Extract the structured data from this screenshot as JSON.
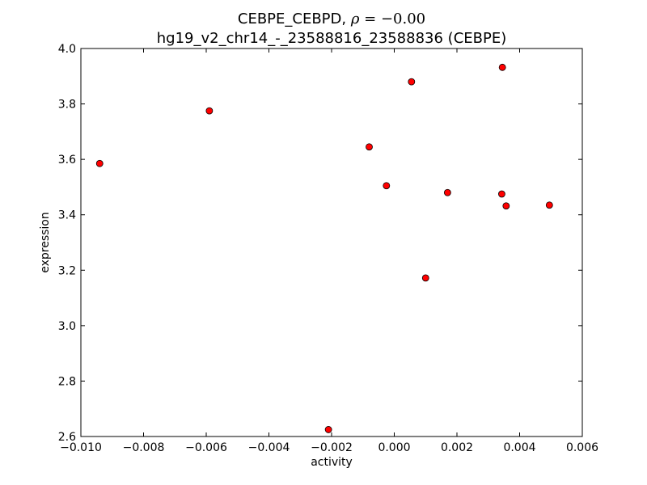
{
  "chart_data": {
    "type": "scatter",
    "title_line1_prefix": "CEBPE_CEBPD, ",
    "title_rho_symbol": "ρ",
    "title_rho_value": " = −0.00",
    "title_line2": "hg19_v2_chr14_-_23588816_23588836 (CEBPE)",
    "xlabel": "activity",
    "ylabel": "expression",
    "xlim": [
      -0.01,
      0.006
    ],
    "ylim": [
      2.6,
      4.0
    ],
    "x_ticks": [
      -0.01,
      -0.008,
      -0.006,
      -0.004,
      -0.002,
      0.0,
      0.002,
      0.004,
      0.006
    ],
    "x_tick_labels": [
      "−0.010",
      "−0.008",
      "−0.006",
      "−0.004",
      "−0.002",
      "0.000",
      "0.002",
      "0.004",
      "0.006"
    ],
    "y_ticks": [
      2.6,
      2.8,
      3.0,
      3.2,
      3.4,
      3.6,
      3.8,
      4.0
    ],
    "y_tick_labels": [
      "2.6",
      "2.8",
      "3.0",
      "3.2",
      "3.4",
      "3.6",
      "3.8",
      "4.0"
    ],
    "grid": false,
    "marker_color": "#ff0000",
    "marker_edge_color": "#000000",
    "points": [
      {
        "x": -0.0094,
        "y": 3.585
      },
      {
        "x": -0.0059,
        "y": 3.775
      },
      {
        "x": -0.0021,
        "y": 2.625
      },
      {
        "x": -0.0008,
        "y": 3.645
      },
      {
        "x": -0.00025,
        "y": 3.505
      },
      {
        "x": 0.00055,
        "y": 3.88
      },
      {
        "x": 0.001,
        "y": 3.172
      },
      {
        "x": 0.0017,
        "y": 3.48
      },
      {
        "x": 0.00343,
        "y": 3.475
      },
      {
        "x": 0.00345,
        "y": 3.932
      },
      {
        "x": 0.00357,
        "y": 3.432
      },
      {
        "x": 0.00495,
        "y": 3.435
      }
    ]
  }
}
